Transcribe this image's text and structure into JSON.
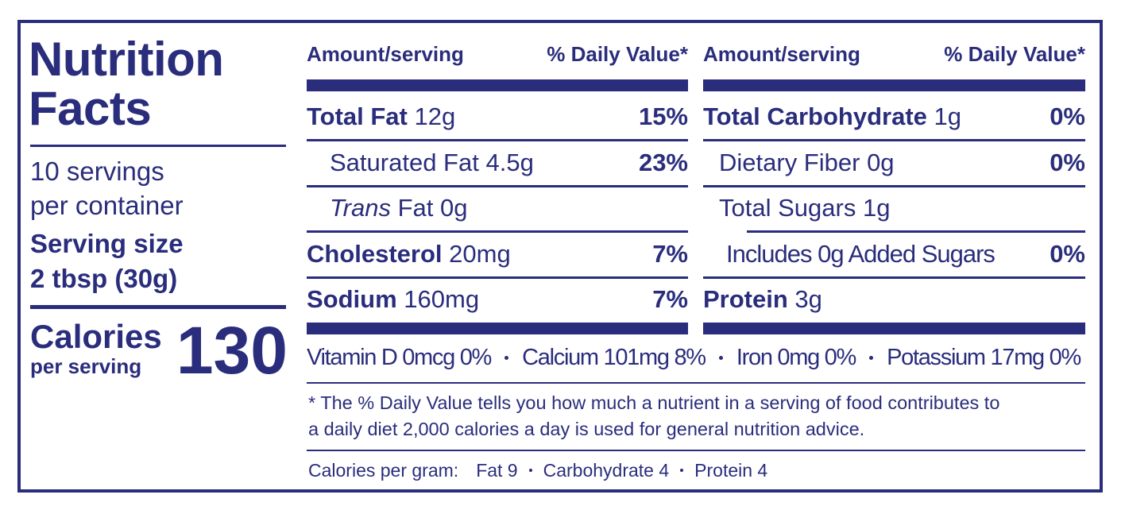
{
  "title": "Nutrition Facts",
  "servings": [
    "10 servings",
    "per container"
  ],
  "serving_size": {
    "label": "Serving size",
    "value": "2 tbsp (30g)"
  },
  "calories": {
    "label": "Calories",
    "sublabel": "per serving",
    "value": 130
  },
  "columns": [
    {
      "header_amount": "Amount/serving",
      "header_daily_value": "% Daily Value*",
      "rows": [
        {
          "name": "Total Fat",
          "amount": "12g",
          "daily_value": "15%",
          "bold": true
        },
        {
          "name": "Saturated Fat",
          "amount": "4.5g",
          "daily_value": "23%",
          "indent": 1
        },
        {
          "italic": "Trans",
          "name": "Fat",
          "amount": "0g",
          "indent": 1
        },
        {
          "name": "Cholesterol",
          "amount": "20mg",
          "daily_value": "7%",
          "bold": true
        },
        {
          "name": "Sodium",
          "amount": "160mg",
          "daily_value": "7%",
          "bold": true
        }
      ]
    },
    {
      "header_amount": "Amount/serving",
      "header_daily_value": "% Daily Value*",
      "rows": [
        {
          "name": "Total Carbohydrate",
          "amount": "1g",
          "daily_value": "0%",
          "bold": true
        },
        {
          "name": "Dietary Fiber",
          "amount": "0g",
          "daily_value": "0%",
          "indent": 1
        },
        {
          "name": "Total Sugars",
          "amount": "1g",
          "indent": 1
        },
        {
          "name": "Includes 0g Added Sugars",
          "daily_value": "0%",
          "indent": 2
        },
        {
          "name": "Protein",
          "amount": "3g",
          "bold": true
        }
      ]
    }
  ],
  "vitamins": [
    "Vitamin D 0mcg 0%",
    "Calcium 101mg 8%",
    "Iron 0mg 0%",
    "Potassium 17mg 0%"
  ],
  "footnote": [
    "* The % Daily Value tells you how much a nutrient in a serving of food contributes to",
    "a daily diet 2,000 calories a day is used for general nutrition advice."
  ],
  "calories_per_gram": {
    "label": "Calories per gram:",
    "items": [
      "Fat 9",
      "Carbohydrate 4",
      "Protein 4"
    ]
  }
}
